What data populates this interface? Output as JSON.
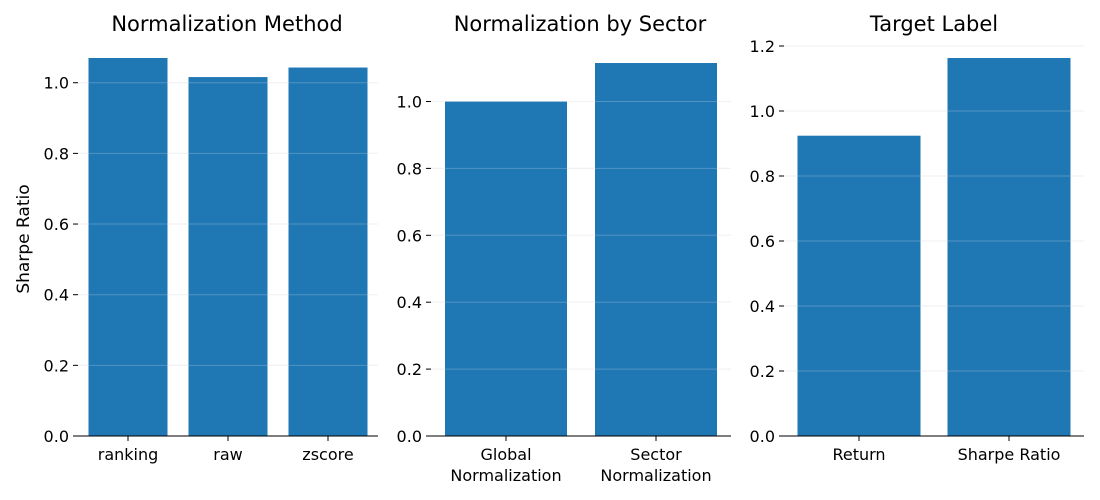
{
  "colors": {
    "bar": "#1f77b4",
    "grid": "#f0f0f0",
    "gridOverlay": "#ffffff",
    "axis": "#000000"
  },
  "chart_data": [
    {
      "type": "bar",
      "title": "Normalization Method",
      "ylabel": "Sharpe Ratio",
      "categories": [
        [
          "ranking"
        ],
        [
          "raw"
        ],
        [
          "zscore"
        ]
      ],
      "values": [
        1.07,
        1.016,
        1.043
      ],
      "ylim": [
        0,
        1.07
      ],
      "yticks": [
        "0.0",
        "0.2",
        "0.4",
        "0.6",
        "0.8",
        "1.0"
      ],
      "grid": true
    },
    {
      "type": "bar",
      "title": "Normalization by Sector",
      "ylabel": "",
      "categories": [
        [
          "Global",
          "Normalization"
        ],
        [
          "Sector",
          "Normalization"
        ]
      ],
      "values": [
        1.0,
        1.115
      ],
      "ylim": [
        0,
        1.13
      ],
      "yticks": [
        "0.0",
        "0.2",
        "0.4",
        "0.6",
        "0.8",
        "1.0"
      ],
      "grid": true
    },
    {
      "type": "bar",
      "title": "Target Label",
      "ylabel": "",
      "categories": [
        [
          "Return"
        ],
        [
          "Sharpe Ratio"
        ]
      ],
      "values": [
        0.924,
        1.163
      ],
      "ylim": [
        0,
        1.2
      ],
      "yticks": [
        "0.0",
        "0.2",
        "0.4",
        "0.6",
        "0.8",
        "1.0",
        "1.2"
      ],
      "grid": true
    }
  ]
}
